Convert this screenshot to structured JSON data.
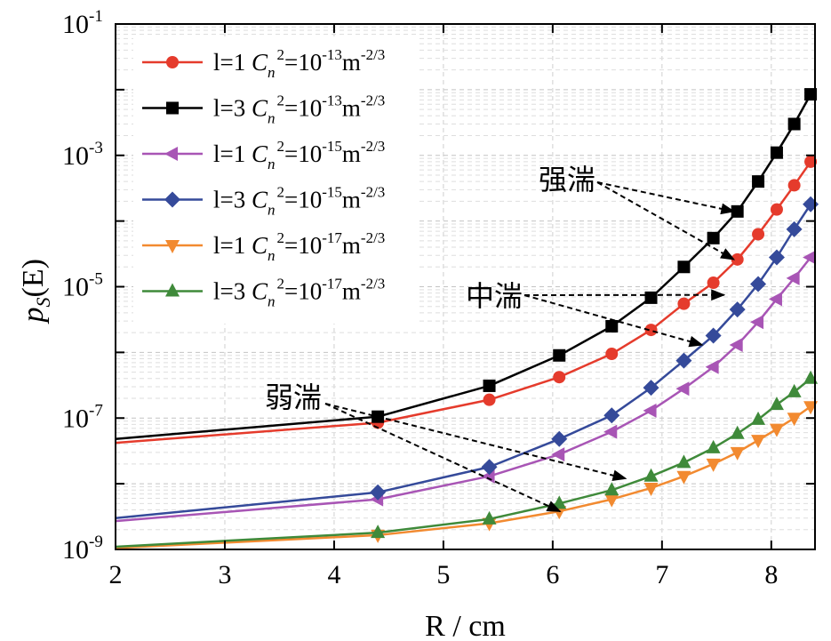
{
  "chart_data": {
    "type": "line",
    "xlabel": "R / cm",
    "ylabel": {
      "main": "p",
      "sub": "S",
      "rest": "(E)"
    },
    "xlim": [
      2,
      8.4
    ],
    "ylim": [
      1e-09,
      0.1
    ],
    "yscale": "log",
    "xticks": [
      2,
      3,
      4,
      5,
      6,
      7,
      8
    ],
    "yticks": [
      {
        "value": 1e-09,
        "base": "10",
        "exp": "-9"
      },
      {
        "value": 1e-07,
        "base": "10",
        "exp": "-7"
      },
      {
        "value": 1e-05,
        "base": "10",
        "exp": "-5"
      },
      {
        "value": 0.001,
        "base": "10",
        "exp": "-3"
      },
      {
        "value": 0.1,
        "base": "10",
        "exp": "-1"
      }
    ],
    "grid": true,
    "legend_position": "top-left",
    "series": [
      {
        "name": "l=1 Cn2=10-13m-2/3",
        "legend": {
          "l": "l=1 ",
          "c": "C",
          "sub": "n",
          "sup": "2",
          "mid": "=10",
          "exp": "-13",
          "unit": "m",
          "uexp": "-2/3"
        },
        "color": "#e53b2c",
        "marker": "circle",
        "x": [
          2,
          4.4,
          5.42,
          6.06,
          6.54,
          6.9,
          7.2,
          7.47,
          7.69,
          7.88,
          8.05,
          8.21,
          8.36
        ],
        "y": [
          4.2e-08,
          8.5e-08,
          1.9e-07,
          4.2e-07,
          9.5e-07,
          2.2e-06,
          5.5e-06,
          1.15e-05,
          2.6e-05,
          6.3e-05,
          0.00015,
          0.00035,
          0.0008
        ]
      },
      {
        "name": "l=3 Cn2=10-13m-2/3",
        "legend": {
          "l": "l=3 ",
          "c": "C",
          "sub": "n",
          "sup": "2",
          "mid": "=10",
          "exp": "-13",
          "unit": "m",
          "uexp": "-2/3"
        },
        "color": "#000000",
        "marker": "square",
        "x": [
          2,
          4.4,
          5.42,
          6.06,
          6.54,
          6.9,
          7.2,
          7.47,
          7.69,
          7.88,
          8.05,
          8.21,
          8.36
        ],
        "y": [
          4.8e-08,
          1.05e-07,
          3.1e-07,
          9e-07,
          2.5e-06,
          6.8e-06,
          2e-05,
          5.5e-05,
          0.00014,
          0.0004,
          0.0011,
          0.003,
          0.0085
        ]
      },
      {
        "name": "l=1 Cn2=10-15m-2/3",
        "legend": {
          "l": "l=1 ",
          "c": "C",
          "sub": "n",
          "sup": "2",
          "mid": "=10",
          "exp": "-15",
          "unit": "m",
          "uexp": "-2/3"
        },
        "color": "#a855b5",
        "marker": "triangle-left",
        "x": [
          2,
          4.4,
          5.42,
          6.06,
          6.54,
          6.9,
          7.2,
          7.47,
          7.69,
          7.88,
          8.05,
          8.21,
          8.36
        ],
        "y": [
          2.7e-09,
          5.8e-09,
          1.3e-08,
          2.8e-08,
          6.2e-08,
          1.3e-07,
          2.8e-07,
          6e-07,
          1.3e-06,
          2.9e-06,
          6.5e-06,
          1.35e-05,
          2.8e-05
        ]
      },
      {
        "name": "l=3 Cn2=10-15m-2/3",
        "legend": {
          "l": "l=3 ",
          "c": "C",
          "sub": "n",
          "sup": "2",
          "mid": "=10",
          "exp": "-15",
          "unit": "m",
          "uexp": "-2/3"
        },
        "color": "#354a9a",
        "marker": "diamond",
        "x": [
          2,
          4.4,
          5.42,
          6.06,
          6.54,
          6.9,
          7.2,
          7.47,
          7.69,
          7.88,
          8.05,
          8.21,
          8.36
        ],
        "y": [
          3e-09,
          7.4e-09,
          1.8e-08,
          4.8e-08,
          1.1e-07,
          2.9e-07,
          7.5e-07,
          1.8e-06,
          4.5e-06,
          1.1e-05,
          2.8e-05,
          7.5e-05,
          0.00018
        ]
      },
      {
        "name": "l=1 Cn2=10-17m-2/3",
        "legend": {
          "l": "l=1 ",
          "c": "C",
          "sub": "n",
          "sup": "2",
          "mid": "=10",
          "exp": "-17",
          "unit": "m",
          "uexp": "-2/3"
        },
        "color": "#f28a30",
        "marker": "triangle-down",
        "x": [
          2,
          4.4,
          5.42,
          6.06,
          6.54,
          6.9,
          7.2,
          7.47,
          7.69,
          7.88,
          8.05,
          8.21,
          8.36
        ],
        "y": [
          1.05e-09,
          1.65e-09,
          2.5e-09,
          3.8e-09,
          5.8e-09,
          8.6e-09,
          1.3e-08,
          2e-08,
          3e-08,
          4.6e-08,
          6.8e-08,
          1e-07,
          1.5e-07
        ]
      },
      {
        "name": "l=3 Cn2=10-17m-2/3",
        "legend": {
          "l": "l=3 ",
          "c": "C",
          "sub": "n",
          "sup": "2",
          "mid": "=10",
          "exp": "-17",
          "unit": "m",
          "uexp": "-2/3"
        },
        "color": "#3f8a3a",
        "marker": "triangle-up",
        "x": [
          2,
          4.4,
          5.42,
          6.06,
          6.54,
          6.9,
          7.2,
          7.47,
          7.69,
          7.88,
          8.05,
          8.21,
          8.36
        ],
        "y": [
          1.1e-09,
          1.8e-09,
          2.9e-09,
          5e-09,
          8e-09,
          1.3e-08,
          2.1e-08,
          3.5e-08,
          5.8e-08,
          9.5e-08,
          1.6e-07,
          2.5e-07,
          4e-07
        ]
      }
    ],
    "annotations": [
      {
        "text": "强湍",
        "arrows_to": [
          [
            7.69,
            0.00014
          ],
          [
            7.69,
            2.6e-05
          ]
        ]
      },
      {
        "text": "中湍",
        "arrows_to": [
          [
            7.6,
            7.5e-06
          ],
          [
            7.4,
            1.3e-06
          ]
        ]
      },
      {
        "text": "弱湍",
        "arrows_to": [
          [
            6.7,
            1.2e-08
          ],
          [
            6.1,
            3.8e-09
          ]
        ]
      }
    ]
  }
}
